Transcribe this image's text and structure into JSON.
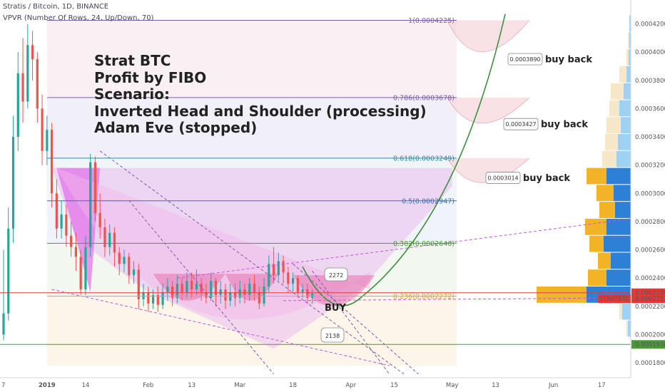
{
  "header": {
    "symbol_line": "Stratis / Bitcoin, 1D, BINANCE",
    "indicator_line": "VPVR (Number Of Rows, 24, Up/Down, 70)"
  },
  "annotation_title": [
    "Strat BTC",
    "Profit by FIBO",
    "Scenario:",
    "Inverted Head and Shoulder (processing)",
    "Adam Eve (stopped)"
  ],
  "chart_data": {
    "type": "candlestick",
    "ylim": [
      0.000172,
      0.000432
    ],
    "y_ticks": [
      "0.0004200",
      "0.0004000",
      "0.0003800",
      "0.0003600",
      "0.0003400",
      "0.0003200",
      "0.0003000",
      "0.0002800",
      "0.0002600",
      "0.0002400",
      "0.0002200",
      "0.0002000",
      "0.0001800"
    ],
    "y_tick_values": [
      0.00042,
      0.0004,
      0.00038,
      0.00036,
      0.00034,
      0.00032,
      0.0003,
      0.00028,
      0.00026,
      0.00024,
      0.00022,
      0.0002,
      0.00018
    ],
    "x_ticks": [
      "7",
      "2019",
      "14",
      "Feb",
      "13",
      "Mar",
      "18",
      "Apr",
      "15",
      "May",
      "13",
      "Jun",
      "17"
    ],
    "x_tick_days": [
      0,
      9,
      17,
      30,
      39,
      49,
      60,
      72,
      81,
      93,
      102,
      114,
      124
    ],
    "candles": [
      [
        0,
        0.0002,
        0.000215,
        0.000196,
        0.00026
      ],
      [
        1,
        0.000215,
        0.000275,
        0.00021,
        0.00029
      ],
      [
        2,
        0.000275,
        0.00034,
        0.000265,
        0.000355
      ],
      [
        3,
        0.00034,
        0.000385,
        0.00033,
        0.0004
      ],
      [
        4,
        0.000385,
        0.000365,
        0.00035,
        0.00041
      ],
      [
        5,
        0.000365,
        0.000405,
        0.00036,
        0.00042
      ],
      [
        6,
        0.000405,
        0.000395,
        0.00038,
        0.000415
      ],
      [
        7,
        0.000395,
        0.00036,
        0.00035,
        0.0004
      ],
      [
        8,
        0.00036,
        0.00033,
        0.00032,
        0.00037
      ],
      [
        9,
        0.00033,
        0.000345,
        0.00032,
        0.000355
      ],
      [
        10,
        0.000345,
        0.0003,
        0.00029,
        0.00035
      ],
      [
        11,
        0.0003,
        0.000275,
        0.000268,
        0.00031
      ],
      [
        12,
        0.000275,
        0.000285,
        0.000268,
        0.000295
      ],
      [
        13,
        0.000285,
        0.00027,
        0.000262,
        0.000292
      ],
      [
        14,
        0.00027,
        0.000262,
        0.000255,
        0.00028
      ],
      [
        15,
        0.000262,
        0.000255,
        0.000245,
        0.000272
      ],
      [
        16,
        0.000255,
        0.000232,
        0.000228,
        0.00026
      ],
      [
        17,
        0.000232,
        0.000262,
        0.000228,
        0.00027
      ],
      [
        18,
        0.000262,
        0.000322,
        0.000255,
        0.000328
      ],
      [
        19,
        0.000322,
        0.000286,
        0.00028,
        0.000326
      ],
      [
        20,
        0.000286,
        0.000276,
        0.000268,
        0.0003
      ],
      [
        21,
        0.000276,
        0.000262,
        0.000255,
        0.000282
      ],
      [
        22,
        0.000262,
        0.000272,
        0.000256,
        0.000278
      ],
      [
        23,
        0.000272,
        0.000258,
        0.000248,
        0.000276
      ],
      [
        24,
        0.000258,
        0.00025,
        0.000242,
        0.000262
      ],
      [
        25,
        0.00025,
        0.000255,
        0.000244,
        0.00026
      ],
      [
        26,
        0.000255,
        0.000242,
        0.000236,
        0.000258
      ],
      [
        27,
        0.000242,
        0.000246,
        0.000236,
        0.000252
      ],
      [
        28,
        0.000246,
        0.000225,
        0.000218,
        0.00025
      ],
      [
        29,
        0.000225,
        0.00023,
        0.00022,
        0.000236
      ],
      [
        30,
        0.00023,
        0.000222,
        0.000216,
        0.000234
      ],
      [
        31,
        0.000222,
        0.000228,
        0.000218,
        0.000232
      ],
      [
        32,
        0.000228,
        0.000221,
        0.000216,
        0.000234
      ],
      [
        33,
        0.000221,
        0.00023,
        0.000218,
        0.000236
      ],
      [
        34,
        0.00023,
        0.000234,
        0.000224,
        0.00024
      ],
      [
        35,
        0.000234,
        0.000226,
        0.00022,
        0.000238
      ],
      [
        36,
        0.000226,
        0.000236,
        0.000222,
        0.000242
      ],
      [
        37,
        0.000236,
        0.00023,
        0.000224,
        0.00024
      ],
      [
        38,
        0.00023,
        0.000238,
        0.000226,
        0.000244
      ],
      [
        39,
        0.000238,
        0.000232,
        0.000226,
        0.000244
      ],
      [
        40,
        0.000232,
        0.000236,
        0.000228,
        0.000246
      ],
      [
        41,
        0.000236,
        0.00023,
        0.000224,
        0.00024
      ],
      [
        42,
        0.00023,
        0.000226,
        0.000222,
        0.000236
      ],
      [
        43,
        0.000226,
        0.000238,
        0.000224,
        0.000244
      ],
      [
        44,
        0.000238,
        0.000228,
        0.00022,
        0.00024
      ],
      [
        45,
        0.000228,
        0.000232,
        0.000222,
        0.000238
      ],
      [
        46,
        0.000232,
        0.000224,
        0.000218,
        0.000236
      ],
      [
        47,
        0.000224,
        0.00023,
        0.00022,
        0.000236
      ],
      [
        48,
        0.00023,
        0.000226,
        0.00022,
        0.000236
      ],
      [
        49,
        0.000226,
        0.000232,
        0.000222,
        0.000238
      ],
      [
        50,
        0.000232,
        0.000228,
        0.000222,
        0.000236
      ],
      [
        51,
        0.000228,
        0.000236,
        0.000224,
        0.00024
      ],
      [
        52,
        0.000236,
        0.00023,
        0.000224,
        0.000242
      ],
      [
        53,
        0.00023,
        0.000222,
        0.000218,
        0.000234
      ],
      [
        54,
        0.000222,
        0.000234,
        0.00022,
        0.00024
      ],
      [
        55,
        0.000234,
        0.00025,
        0.00023,
        0.000256
      ],
      [
        56,
        0.00025,
        0.000242,
        0.000236,
        0.000262
      ],
      [
        57,
        0.000242,
        0.000252,
        0.000238,
        0.000258
      ],
      [
        58,
        0.000252,
        0.000244,
        0.000236,
        0.000256
      ],
      [
        59,
        0.000244,
        0.000236,
        0.00023,
        0.000248
      ],
      [
        60,
        0.000236,
        0.00024,
        0.00023,
        0.000244
      ],
      [
        61,
        0.00024,
        0.00023,
        0.000226,
        0.000242
      ],
      [
        62,
        0.00023,
        0.000232,
        0.000226,
        0.000236
      ],
      [
        63,
        0.000232,
        0.000226,
        0.000222,
        0.000236
      ],
      [
        64,
        0.000226,
        0.000229,
        0.000222,
        0.000232
      ]
    ],
    "annotations": [
      "2272",
      "2138",
      "BUY"
    ]
  },
  "fib_levels": [
    {
      "label": "1(0.0004225)",
      "value": 0.0004225,
      "color": "#7b5da8"
    },
    {
      "label": "0.786(0.0003678)",
      "value": 0.0003678,
      "color": "#7b5da8"
    },
    {
      "label": "0.618(0.0003249)",
      "value": 0.0003249,
      "color": "#2a8fa8"
    },
    {
      "label": "0.5(0.0002947)",
      "value": 0.0002947,
      "color": "#3b6fb0"
    },
    {
      "label": "0.382(0.0002646)",
      "value": 0.0002646,
      "color": "#4a9a3a"
    },
    {
      "label": "0.236(0.0002272)",
      "value": 0.0002272,
      "color": "#e8a13a"
    }
  ],
  "buyback_callouts": [
    {
      "price": "0.0003890",
      "label": "buy back"
    },
    {
      "price": "0.0003427",
      "label": "buy back"
    },
    {
      "price": "0.0003014",
      "label": "buy back"
    }
  ],
  "price_tags": [
    {
      "text": "0.0002296",
      "color": "#e53935"
    },
    {
      "text": "0.0002253",
      "color": "#e53935"
    },
    {
      "text": "0.0001930",
      "color": "#4a9a3a"
    }
  ],
  "ticker_tag": "STRATBTC",
  "buy_label": "BUY",
  "colors": {
    "up": "#26a69a",
    "down": "#ef5350",
    "accent_red": "#e53935",
    "green_curve": "#3d8f3d"
  }
}
